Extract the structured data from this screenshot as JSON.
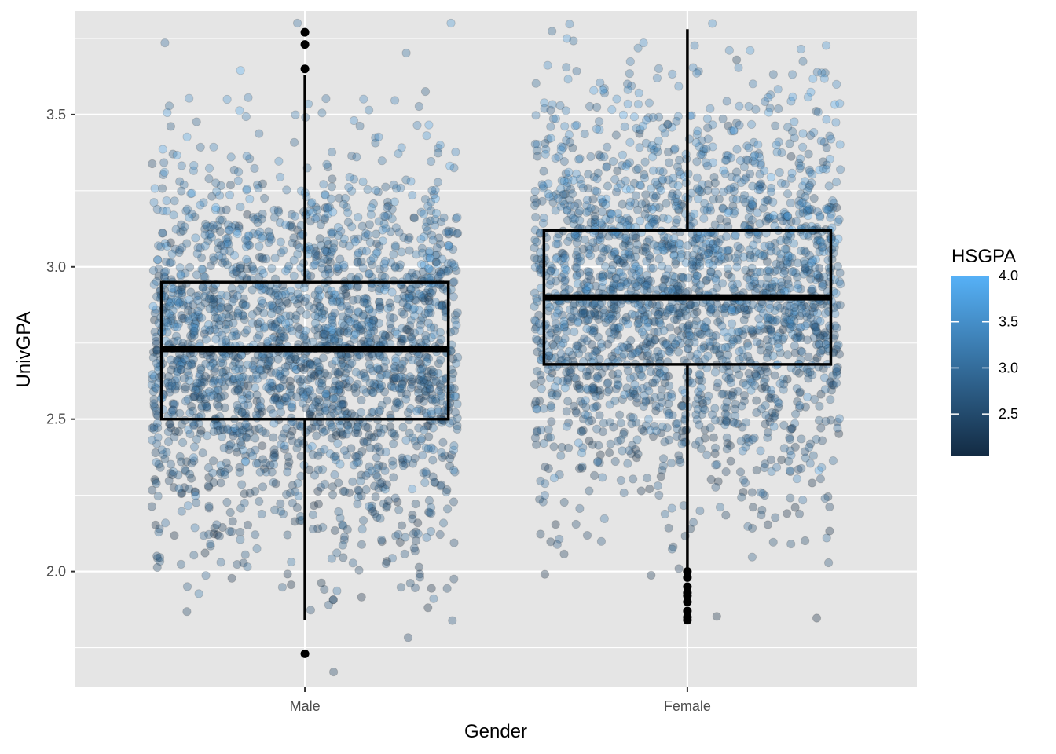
{
  "chart_data": {
    "type": "box",
    "overlay": "jittered-scatter",
    "title": "",
    "xlabel": "Gender",
    "ylabel": "UnivGPA",
    "categories": [
      "Male",
      "Female"
    ],
    "ylim": [
      1.62,
      3.84
    ],
    "y_ticks": [
      2.0,
      2.5,
      3.0,
      3.5
    ],
    "y_tick_labels": [
      "2.0",
      "2.5",
      "3.0",
      "3.5"
    ],
    "grid": true,
    "boxes": [
      {
        "name": "Male",
        "q1": 2.5,
        "median": 2.73,
        "q3": 2.95,
        "whisker_low": 1.84,
        "whisker_high": 3.63,
        "outliers": [
          1.73,
          3.65,
          3.73,
          3.77
        ]
      },
      {
        "name": "Female",
        "q1": 2.68,
        "median": 2.9,
        "q3": 3.12,
        "whisker_low": 2.0,
        "whisker_high": 3.78,
        "outliers": [
          1.84,
          1.85,
          1.87,
          1.9,
          1.92,
          1.93,
          1.95,
          1.98,
          2.0
        ]
      }
    ],
    "color_scale": {
      "title": "HSGPA",
      "domain": [
        2.05,
        4.0
      ],
      "low_color": "#132B43",
      "high_color": "#56B1F7",
      "ticks": [
        2.5,
        3.0,
        3.5,
        4.0
      ],
      "tick_labels": [
        "2.5",
        "3.0",
        "3.5",
        "4.0"
      ]
    },
    "point_alpha": 0.35,
    "panel_background": "#e5e5e5",
    "grid_color": "#ffffff"
  }
}
